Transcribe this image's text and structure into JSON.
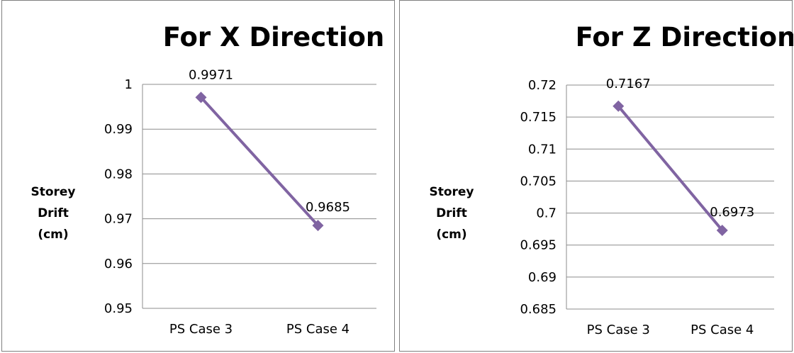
{
  "chart_data": [
    {
      "type": "line",
      "title": "For X Direction",
      "xlabel": "",
      "ylabel": [
        "Storey",
        "Drift",
        "(cm)"
      ],
      "categories": [
        "PS Case 3",
        "PS Case 4"
      ],
      "series": [
        {
          "values": [
            0.9971,
            0.9685
          ],
          "labels": [
            "0.9971",
            "0.9685"
          ]
        }
      ],
      "ylim": [
        0.95,
        1
      ],
      "yticks": [
        "0.95",
        "0.96",
        "0.97",
        "0.98",
        "0.99",
        "1"
      ],
      "yticks_num": [
        0.95,
        0.96,
        0.97,
        0.98,
        0.99,
        1
      ],
      "grid": true,
      "color": "#8064a2"
    },
    {
      "type": "line",
      "title": "For Z Direction",
      "xlabel": "",
      "ylabel": [
        "Storey",
        "Drift",
        "(cm)"
      ],
      "categories": [
        "PS Case 3",
        "PS Case 4"
      ],
      "series": [
        {
          "values": [
            0.7167,
            0.6973
          ],
          "labels": [
            "0.7167",
            "0.6973"
          ]
        }
      ],
      "ylim": [
        0.685,
        0.72
      ],
      "yticks": [
        "0.685",
        "0.69",
        "0.695",
        "0.7",
        "0.705",
        "0.71",
        "0.715",
        "0.72"
      ],
      "yticks_num": [
        0.685,
        0.69,
        0.695,
        0.7,
        0.705,
        0.71,
        0.715,
        0.72
      ],
      "grid": true,
      "color": "#8064a2"
    }
  ]
}
